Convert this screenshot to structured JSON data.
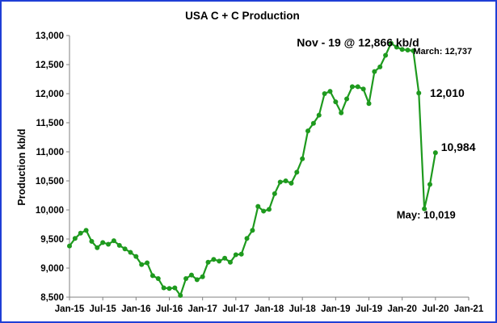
{
  "chart_data": {
    "type": "line",
    "title": "USA C + C Production",
    "xlabel": "",
    "ylabel": "Production kb/d",
    "ylim": [
      8500,
      13000
    ],
    "yticks": [
      8500,
      9000,
      9500,
      10000,
      10500,
      11000,
      11500,
      12000,
      12500,
      13000
    ],
    "ytick_labels": [
      "8,500",
      "9,000",
      "9,500",
      "10,000",
      "10,500",
      "11,000",
      "11,500",
      "12,000",
      "12,500",
      "13,000"
    ],
    "xlim": [
      "2015-01",
      "2021-01"
    ],
    "xticks": [
      "2015-01",
      "2015-07",
      "2016-01",
      "2016-07",
      "2017-01",
      "2017-07",
      "2018-01",
      "2018-07",
      "2019-01",
      "2019-07",
      "2020-01",
      "2020-07",
      "2021-01"
    ],
    "xtick_labels": [
      "Jan-15",
      "Jul-15",
      "Jan-16",
      "Jul-16",
      "Jan-17",
      "Jul-17",
      "Jan-18",
      "Jul-18",
      "Jan-19",
      "Jul-19",
      "Jan-20",
      "Jul-20",
      "Jan-21"
    ],
    "grid": false,
    "line_color": "#1e9a1e",
    "series": [
      {
        "x": [
          "2015-01",
          "2015-02",
          "2015-03",
          "2015-04",
          "2015-05",
          "2015-06",
          "2015-07",
          "2015-08",
          "2015-09",
          "2015-10",
          "2015-11",
          "2015-12",
          "2016-01",
          "2016-02",
          "2016-03",
          "2016-04",
          "2016-05",
          "2016-06",
          "2016-07",
          "2016-08",
          "2016-09",
          "2016-10",
          "2016-11",
          "2016-12",
          "2017-01",
          "2017-02",
          "2017-03",
          "2017-04",
          "2017-05",
          "2017-06",
          "2017-07",
          "2017-08",
          "2017-09",
          "2017-10",
          "2017-11",
          "2017-12",
          "2018-01",
          "2018-02",
          "2018-03",
          "2018-04",
          "2018-05",
          "2018-06",
          "2018-07",
          "2018-08",
          "2018-09",
          "2018-10",
          "2018-11",
          "2018-12",
          "2019-01",
          "2019-02",
          "2019-03",
          "2019-04",
          "2019-05",
          "2019-06",
          "2019-07",
          "2019-08",
          "2019-09",
          "2019-10",
          "2019-11",
          "2019-12",
          "2020-01",
          "2020-02",
          "2020-03",
          "2020-04",
          "2020-05",
          "2020-06",
          "2020-07"
        ],
        "y": [
          9380,
          9510,
          9600,
          9650,
          9460,
          9350,
          9440,
          9410,
          9470,
          9390,
          9330,
          9270,
          9200,
          9060,
          9090,
          8870,
          8820,
          8660,
          8650,
          8660,
          8530,
          8820,
          8880,
          8800,
          8850,
          9100,
          9150,
          9120,
          9170,
          9100,
          9230,
          9240,
          9510,
          9650,
          10060,
          9980,
          10010,
          10280,
          10480,
          10500,
          10460,
          10650,
          10880,
          11360,
          11490,
          11630,
          12000,
          12040,
          11860,
          11670,
          11910,
          12120,
          12120,
          12080,
          11830,
          12380,
          12460,
          12660,
          12866,
          12800,
          12760,
          12750,
          12737,
          12010,
          10019,
          10440,
          10984
        ]
      }
    ],
    "annotations": [
      {
        "text": "Nov - 19 @ 12,866 kb/d",
        "x": "2018-06",
        "y": 12880,
        "size": 14
      },
      {
        "text": "March: 12,737",
        "x": "2020-03",
        "y": 12737,
        "size": 11
      },
      {
        "text": "12,010",
        "x": "2020-06",
        "y": 12010,
        "size": 14
      },
      {
        "text": "10,984",
        "x": "2020-08",
        "y": 11080,
        "size": 14
      },
      {
        "text": "May: 10,019",
        "x": "2019-12",
        "y": 9920,
        "size": 13
      }
    ]
  }
}
